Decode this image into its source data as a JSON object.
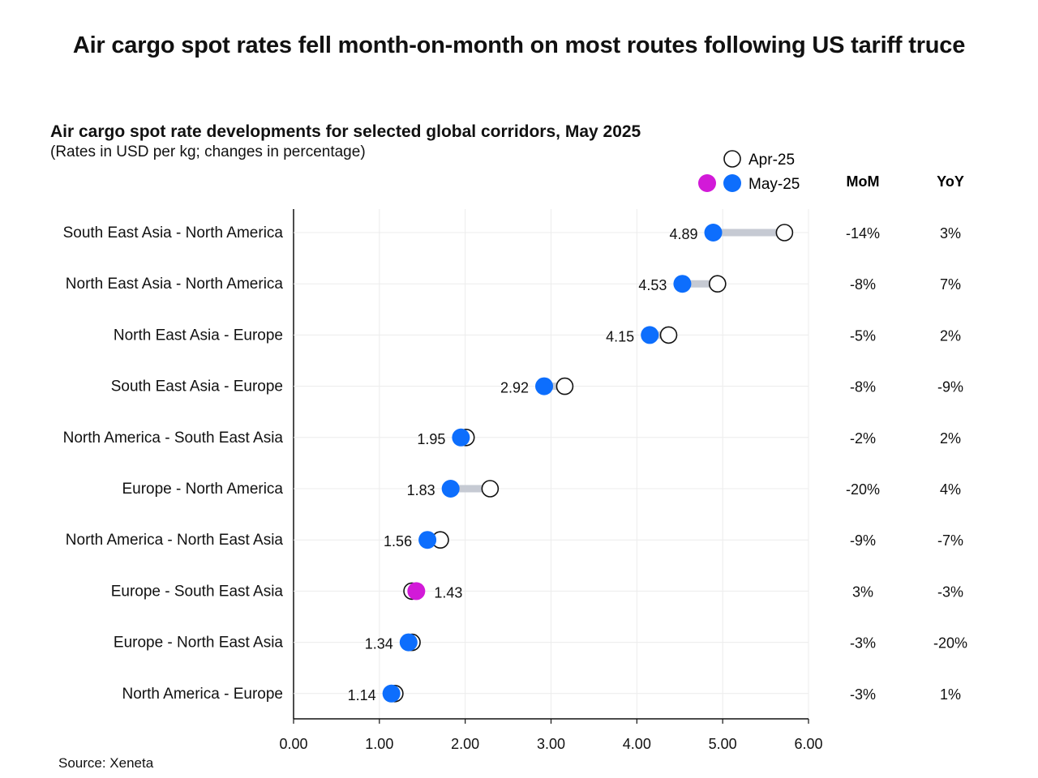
{
  "headline": "Air cargo spot rates fell month-on-month on most routes following US tariff truce",
  "source": "Source: Xeneta",
  "colors": {
    "may_down": "#0d6efd",
    "may_up": "#d21ad8",
    "connector": "#c6cad3",
    "apr_fill": "#ffffff",
    "apr_stroke": "#111111",
    "grid": "#ececec"
  },
  "chart_data": {
    "type": "dumbbell",
    "title": "Air cargo spot rate developments for selected global corridors, May 2025",
    "subtitle": "(Rates in USD per kg; changes in percentage)",
    "xlim": [
      0,
      6
    ],
    "x_ticks": [
      "0.00",
      "1.00",
      "2.00",
      "3.00",
      "4.00",
      "5.00",
      "6.00"
    ],
    "legend": {
      "apr_label": "Apr-25",
      "may_label": "May-25",
      "placement": "top-right"
    },
    "column_headers": {
      "mom": "MoM",
      "yoy": "YoY"
    },
    "rows": [
      {
        "corridor": "South East Asia - North America",
        "may": 4.89,
        "apr": 5.72,
        "may_label": "4.89",
        "mom": "-14%",
        "yoy": "3%"
      },
      {
        "corridor": "North East Asia - North America",
        "may": 4.53,
        "apr": 4.94,
        "may_label": "4.53",
        "mom": "-8%",
        "yoy": "7%"
      },
      {
        "corridor": "North East Asia - Europe",
        "may": 4.15,
        "apr": 4.37,
        "may_label": "4.15",
        "mom": "-5%",
        "yoy": "2%"
      },
      {
        "corridor": "South East Asia - Europe",
        "may": 2.92,
        "apr": 3.16,
        "may_label": "2.92",
        "mom": "-8%",
        "yoy": "-9%"
      },
      {
        "corridor": "North America - South East Asia",
        "may": 1.95,
        "apr": 2.01,
        "may_label": "1.95",
        "mom": "-2%",
        "yoy": "2%"
      },
      {
        "corridor": "Europe - North America",
        "may": 1.83,
        "apr": 2.29,
        "may_label": "1.83",
        "mom": "-20%",
        "yoy": "4%"
      },
      {
        "corridor": "North America - North East Asia",
        "may": 1.56,
        "apr": 1.71,
        "may_label": "1.56",
        "mom": "-9%",
        "yoy": "-7%"
      },
      {
        "corridor": "Europe - South East Asia",
        "may": 1.43,
        "apr": 1.38,
        "may_label": "1.43",
        "mom": "3%",
        "yoy": "-3%"
      },
      {
        "corridor": "Europe - North East Asia",
        "may": 1.34,
        "apr": 1.38,
        "may_label": "1.34",
        "mom": "-3%",
        "yoy": "-20%"
      },
      {
        "corridor": "North America - Europe",
        "may": 1.14,
        "apr": 1.18,
        "may_label": "1.14",
        "mom": "-3%",
        "yoy": "1%"
      }
    ]
  }
}
